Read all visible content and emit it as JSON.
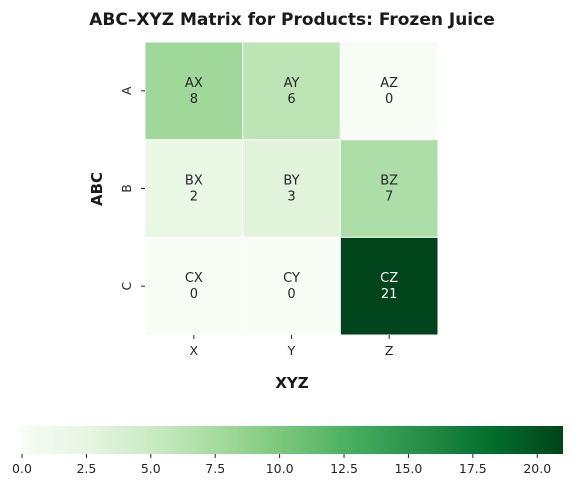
{
  "chart_data": {
    "type": "heatmap",
    "title": "ABC–XYZ Matrix for Products: Frozen Juice",
    "xlabel": "XYZ",
    "ylabel": "ABC",
    "x_categories": [
      "X",
      "Y",
      "Z"
    ],
    "y_categories": [
      "A",
      "B",
      "C"
    ],
    "cells": [
      [
        {
          "label": "AX",
          "value": 8
        },
        {
          "label": "AY",
          "value": 6
        },
        {
          "label": "AZ",
          "value": 0
        }
      ],
      [
        {
          "label": "BX",
          "value": 2
        },
        {
          "label": "BY",
          "value": 3
        },
        {
          "label": "BZ",
          "value": 7
        }
      ],
      [
        {
          "label": "CX",
          "value": 0
        },
        {
          "label": "CY",
          "value": 0
        },
        {
          "label": "CZ",
          "value": 21
        }
      ]
    ],
    "colormap": "Greens",
    "color_range": [
      0,
      21
    ],
    "colorbar": {
      "placement": "bottom",
      "ticks": [
        "0.0",
        "2.5",
        "5.0",
        "7.5",
        "10.0",
        "12.5",
        "15.0",
        "17.5",
        "20.0"
      ]
    },
    "cell_border_color": "#ffffff",
    "legend": "none"
  }
}
